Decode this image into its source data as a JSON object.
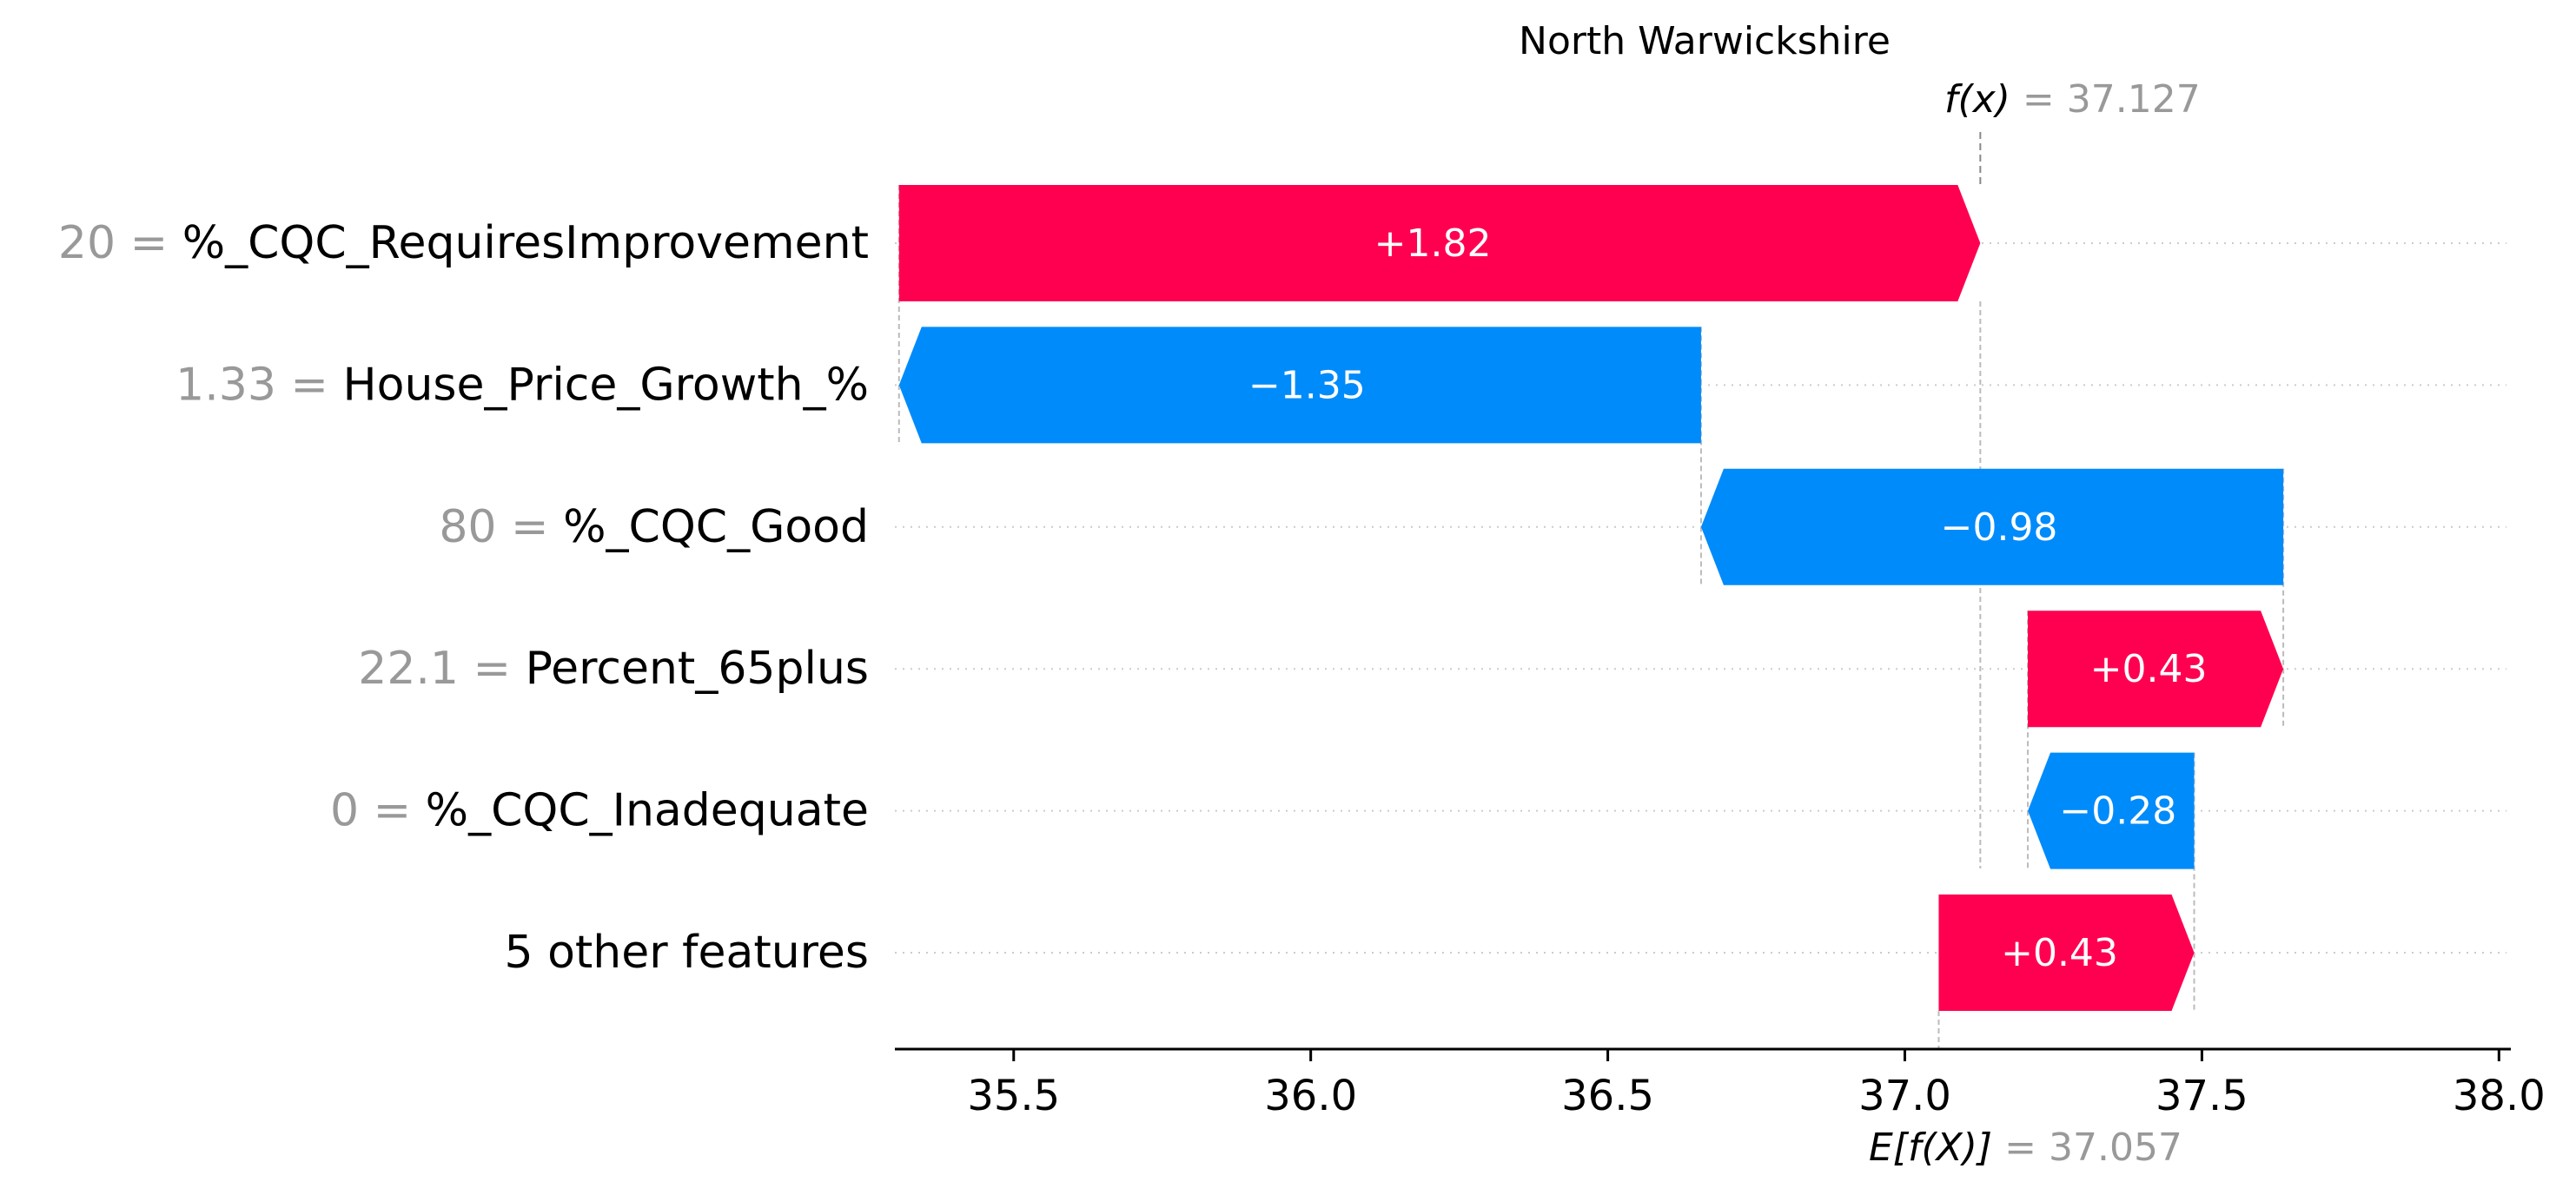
{
  "chart_data": {
    "type": "bar",
    "subtype": "waterfall",
    "title": "North Warwickshire",
    "fx_label": "f(x)",
    "fx_value": "37.127",
    "ex_label": "E[f(X)]",
    "ex_value": "37.057",
    "base_value": 37.057,
    "final_value": 37.127,
    "xlim": [
      35.3,
      38.02
    ],
    "x_ticks": [
      35.5,
      36.0,
      36.5,
      37.0,
      37.5,
      38.0
    ],
    "x_tick_labels": [
      "35.5",
      "36.0",
      "36.5",
      "37.0",
      "37.5",
      "38.0"
    ],
    "features": [
      {
        "value": "20",
        "name": "%_CQC_RequiresImprovement",
        "contribution": 1.82,
        "label": "+1.82"
      },
      {
        "value": "1.33",
        "name": "House_Price_Growth_%",
        "contribution": -1.35,
        "label": "−1.35"
      },
      {
        "value": "80",
        "name": "%_CQC_Good",
        "contribution": -0.98,
        "label": "−0.98"
      },
      {
        "value": "22.1",
        "name": "Percent_65plus",
        "contribution": 0.43,
        "label": "+0.43"
      },
      {
        "value": "0",
        "name": "%_CQC_Inadequate",
        "contribution": -0.28,
        "label": "−0.28"
      },
      {
        "value": "",
        "name": "5 other features",
        "contribution": 0.43,
        "label": "+0.43"
      }
    ],
    "colors": {
      "positive": "#ff0051",
      "negative": "#008bfb",
      "grid": "#cccccc",
      "muted": "#999999"
    },
    "grid": true
  }
}
